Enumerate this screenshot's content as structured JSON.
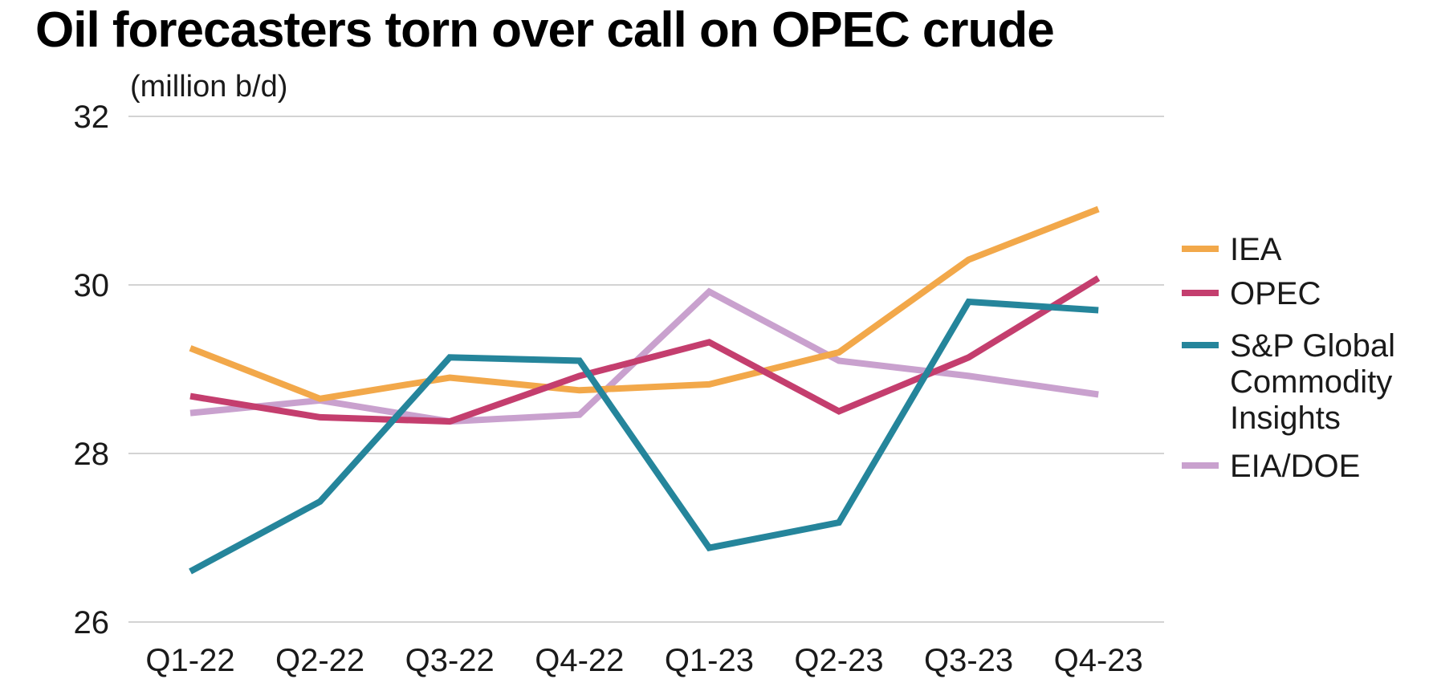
{
  "chart_data": {
    "type": "line",
    "title": "Oil forecasters torn over call on OPEC crude",
    "ylabel": "(million b/d)",
    "xlabel": "",
    "categories": [
      "Q1-22",
      "Q2-22",
      "Q3-22",
      "Q4-22",
      "Q1-23",
      "Q2-23",
      "Q3-23",
      "Q4-23"
    ],
    "ylim": [
      26,
      32
    ],
    "yticks": [
      26,
      28,
      30,
      32
    ],
    "grid": true,
    "legend": "right",
    "series": [
      {
        "name": "IEA",
        "color": "#F2A84A",
        "values": [
          29.25,
          28.65,
          28.9,
          28.75,
          28.82,
          29.2,
          30.3,
          30.9
        ]
      },
      {
        "name": "OPEC",
        "color": "#C43E6E",
        "values": [
          28.68,
          28.43,
          28.38,
          28.92,
          29.32,
          28.5,
          29.14,
          30.08
        ]
      },
      {
        "name": "S&P Global Commodity Insights",
        "legend_lines": [
          "S&P Global",
          "Commodity",
          "Insights"
        ],
        "color": "#25859B",
        "values": [
          26.6,
          27.43,
          29.14,
          29.1,
          26.88,
          27.18,
          29.8,
          29.7
        ]
      },
      {
        "name": "EIA/DOE",
        "color": "#C9A1CE",
        "values": [
          28.48,
          28.63,
          28.38,
          28.46,
          29.92,
          29.1,
          28.92,
          28.7
        ]
      }
    ]
  }
}
